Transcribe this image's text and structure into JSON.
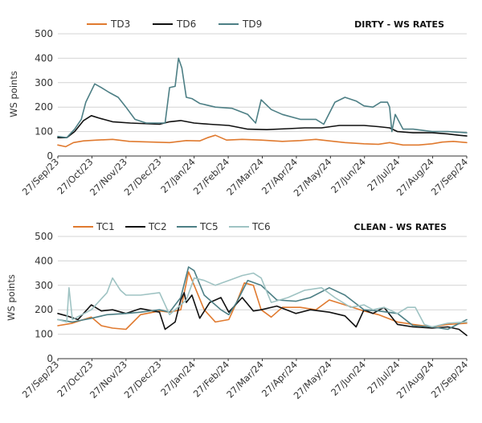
{
  "chart_data": [
    {
      "type": "line",
      "title": "DIRTY - WS RATES",
      "ylabel": "WS points",
      "xlabel": "",
      "ylim": [
        0,
        500
      ],
      "yticks": [
        0,
        100,
        200,
        300,
        400,
        500
      ],
      "xlim": [
        "2023-09-27",
        "2024-09-27"
      ],
      "xtick_labels": [
        "27/Sep/23",
        "27/Oct/23",
        "27/Nov/23",
        "27/Dec/23",
        "27/Jan/24",
        "27/Feb/24",
        "27/Mar/24",
        "27/Apr/24",
        "27/May/24",
        "27/Jun/24",
        "27/Jul/24",
        "27/Aug/24",
        "27/Sep/24"
      ],
      "legend_position": "top",
      "grid": true,
      "series": [
        {
          "name": "TD3",
          "color": "#e07a2f",
          "x": [
            "2023-09-27",
            "2023-10-04",
            "2023-10-11",
            "2023-10-20",
            "2023-11-01",
            "2023-11-15",
            "2023-11-30",
            "2023-12-15",
            "2024-01-05",
            "2024-01-20",
            "2024-02-01",
            "2024-02-08",
            "2024-02-15",
            "2024-02-25",
            "2024-03-10",
            "2024-03-27",
            "2024-04-15",
            "2024-05-01",
            "2024-05-15",
            "2024-05-27",
            "2024-06-10",
            "2024-06-27",
            "2024-07-10",
            "2024-07-20",
            "2024-08-01",
            "2024-08-15",
            "2024-08-27",
            "2024-09-05",
            "2024-09-15",
            "2024-09-27"
          ],
          "values": [
            45,
            38,
            55,
            62,
            65,
            68,
            60,
            58,
            55,
            63,
            62,
            75,
            85,
            65,
            68,
            65,
            60,
            63,
            68,
            62,
            55,
            50,
            48,
            55,
            45,
            45,
            50,
            57,
            60,
            55
          ]
        },
        {
          "name": "TD6",
          "color": "#111111",
          "x": [
            "2023-09-27",
            "2023-10-05",
            "2023-10-12",
            "2023-10-20",
            "2023-10-27",
            "2023-11-03",
            "2023-11-15",
            "2023-12-01",
            "2023-12-27",
            "2024-01-05",
            "2024-01-15",
            "2024-01-27",
            "2024-02-10",
            "2024-02-27",
            "2024-03-15",
            "2024-04-01",
            "2024-04-20",
            "2024-05-05",
            "2024-05-20",
            "2024-06-05",
            "2024-06-27",
            "2024-07-10",
            "2024-07-20",
            "2024-07-27",
            "2024-08-10",
            "2024-08-27",
            "2024-09-10",
            "2024-09-20",
            "2024-09-27"
          ],
          "values": [
            75,
            75,
            100,
            145,
            165,
            155,
            140,
            135,
            130,
            140,
            145,
            135,
            130,
            125,
            110,
            108,
            112,
            115,
            115,
            125,
            125,
            120,
            115,
            100,
            95,
            95,
            90,
            85,
            82
          ]
        },
        {
          "name": "TD9",
          "color": "#4d7f85",
          "x": [
            "2023-09-27",
            "2023-10-05",
            "2023-10-12",
            "2023-10-18",
            "2023-10-22",
            "2023-10-30",
            "2023-11-05",
            "2023-11-12",
            "2023-11-20",
            "2023-11-27",
            "2023-12-05",
            "2023-12-15",
            "2023-12-27",
            "2024-01-01",
            "2024-01-05",
            "2024-01-10",
            "2024-01-13",
            "2024-01-16",
            "2024-01-20",
            "2024-01-25",
            "2024-02-01",
            "2024-02-15",
            "2024-03-01",
            "2024-03-15",
            "2024-03-22",
            "2024-03-27",
            "2024-04-05",
            "2024-04-15",
            "2024-05-01",
            "2024-05-15",
            "2024-05-22",
            "2024-06-01",
            "2024-06-10",
            "2024-06-20",
            "2024-06-27",
            "2024-07-05",
            "2024-07-12",
            "2024-07-18",
            "2024-07-20",
            "2024-07-22",
            "2024-07-25",
            "2024-08-01",
            "2024-08-10",
            "2024-08-27",
            "2024-09-10",
            "2024-09-27"
          ],
          "values": [
            80,
            75,
            110,
            150,
            220,
            295,
            280,
            260,
            240,
            200,
            150,
            135,
            135,
            135,
            280,
            285,
            400,
            360,
            240,
            235,
            215,
            200,
            195,
            170,
            135,
            230,
            190,
            170,
            150,
            150,
            130,
            220,
            240,
            225,
            205,
            200,
            220,
            220,
            200,
            100,
            170,
            110,
            110,
            100,
            100,
            95
          ]
        }
      ]
    },
    {
      "type": "line",
      "title": "CLEAN - WS RATES",
      "ylabel": "WS points",
      "xlabel": "",
      "ylim": [
        0,
        500
      ],
      "yticks": [
        0,
        100,
        200,
        300,
        400,
        500
      ],
      "xlim": [
        "2023-09-27",
        "2024-09-27"
      ],
      "xtick_labels": [
        "27/Sep/23",
        "27/Oct/23",
        "27/Nov/23",
        "27/Dec/23",
        "27/Jan/24",
        "27/Feb/24",
        "27/Mar/24",
        "27/Apr/24",
        "27/May/24",
        "27/Jun/24",
        "27/Jul/24",
        "27/Aug/24",
        "27/Sep/24"
      ],
      "legend_position": "top",
      "grid": true,
      "series": [
        {
          "name": "TC1",
          "color": "#e07a2f",
          "x": [
            "2023-09-27",
            "2023-10-10",
            "2023-10-27",
            "2023-11-05",
            "2023-11-15",
            "2023-11-27",
            "2023-12-10",
            "2023-12-27",
            "2024-01-05",
            "2024-01-15",
            "2024-01-22",
            "2024-01-27",
            "2024-02-05",
            "2024-02-15",
            "2024-02-27",
            "2024-03-05",
            "2024-03-12",
            "2024-03-20",
            "2024-03-27",
            "2024-04-05",
            "2024-04-15",
            "2024-05-01",
            "2024-05-15",
            "2024-05-27",
            "2024-06-10",
            "2024-06-27",
            "2024-07-10",
            "2024-07-27",
            "2024-08-10",
            "2024-08-27",
            "2024-09-10",
            "2024-09-27"
          ],
          "values": [
            135,
            145,
            170,
            135,
            125,
            120,
            180,
            195,
            190,
            200,
            355,
            300,
            200,
            150,
            160,
            230,
            310,
            300,
            200,
            170,
            210,
            210,
            200,
            240,
            220,
            195,
            180,
            150,
            140,
            130,
            140,
            145
          ]
        },
        {
          "name": "TC2",
          "color": "#111111",
          "x": [
            "2023-09-27",
            "2023-10-05",
            "2023-10-15",
            "2023-10-27",
            "2023-11-05",
            "2023-11-15",
            "2023-11-27",
            "2023-12-10",
            "2023-12-27",
            "2024-01-01",
            "2024-01-10",
            "2024-01-15",
            "2024-01-18",
            "2024-01-20",
            "2024-01-25",
            "2024-02-01",
            "2024-02-10",
            "2024-02-20",
            "2024-02-27",
            "2024-03-10",
            "2024-03-20",
            "2024-03-27",
            "2024-04-10",
            "2024-04-27",
            "2024-05-10",
            "2024-05-27",
            "2024-06-10",
            "2024-06-20",
            "2024-06-27",
            "2024-07-05",
            "2024-07-15",
            "2024-07-27",
            "2024-08-10",
            "2024-08-27",
            "2024-09-10",
            "2024-09-20",
            "2024-09-27"
          ],
          "values": [
            185,
            175,
            160,
            220,
            195,
            200,
            185,
            205,
            190,
            120,
            150,
            240,
            270,
            230,
            260,
            165,
            230,
            250,
            190,
            250,
            195,
            200,
            215,
            185,
            200,
            190,
            175,
            130,
            200,
            185,
            210,
            140,
            130,
            125,
            130,
            120,
            95
          ]
        },
        {
          "name": "TC5",
          "color": "#4d7f85",
          "x": [
            "2023-09-27",
            "2023-10-10",
            "2023-10-27",
            "2023-11-10",
            "2023-11-27",
            "2023-12-10",
            "2023-12-27",
            "2024-01-05",
            "2024-01-15",
            "2024-01-22",
            "2024-01-27",
            "2024-02-05",
            "2024-02-20",
            "2024-02-27",
            "2024-03-05",
            "2024-03-15",
            "2024-03-27",
            "2024-04-10",
            "2024-04-27",
            "2024-05-10",
            "2024-05-27",
            "2024-06-10",
            "2024-06-27",
            "2024-07-10",
            "2024-07-27",
            "2024-08-10",
            "2024-08-27",
            "2024-09-10",
            "2024-09-27"
          ],
          "values": [
            160,
            150,
            165,
            180,
            185,
            190,
            200,
            190,
            250,
            375,
            360,
            260,
            200,
            180,
            230,
            320,
            300,
            240,
            235,
            250,
            290,
            260,
            200,
            195,
            185,
            135,
            130,
            120,
            160
          ]
        },
        {
          "name": "TC6",
          "color": "#9fc3c3",
          "x": [
            "2023-09-27",
            "2023-10-05",
            "2023-10-07",
            "2023-10-10",
            "2023-10-27",
            "2023-11-10",
            "2023-11-15",
            "2023-11-22",
            "2023-11-27",
            "2023-12-10",
            "2023-12-27",
            "2024-01-05",
            "2024-01-15",
            "2024-01-20",
            "2024-01-27",
            "2024-02-05",
            "2024-02-15",
            "2024-02-27",
            "2024-03-10",
            "2024-03-20",
            "2024-03-27",
            "2024-04-05",
            "2024-04-20",
            "2024-05-05",
            "2024-05-20",
            "2024-06-01",
            "2024-06-15",
            "2024-06-27",
            "2024-07-05",
            "2024-07-15",
            "2024-07-27",
            "2024-08-05",
            "2024-08-12",
            "2024-08-20",
            "2024-08-27",
            "2024-09-10",
            "2024-09-27"
          ],
          "values": [
            160,
            150,
            290,
            160,
            200,
            270,
            330,
            280,
            260,
            260,
            270,
            180,
            220,
            240,
            330,
            320,
            300,
            320,
            340,
            350,
            330,
            230,
            250,
            280,
            290,
            250,
            210,
            220,
            200,
            210,
            185,
            210,
            210,
            140,
            130,
            145,
            150
          ]
        }
      ]
    }
  ]
}
